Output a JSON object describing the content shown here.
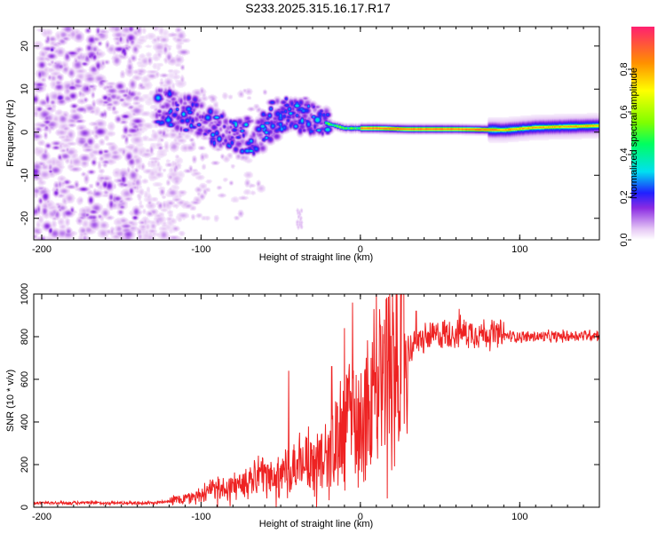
{
  "title": "S233.2025.315.16.17.R17",
  "chart_data": [
    {
      "type": "heatmap",
      "name": "spectrogram",
      "xlabel": "Height of straight line (km)",
      "ylabel": "Frequency (Hz)",
      "xlim": [
        -205,
        150
      ],
      "ylim": [
        -25,
        24.5
      ],
      "xticks": [
        -200,
        -100,
        0,
        100
      ],
      "yticks": [
        -20,
        -10,
        0,
        10,
        20
      ],
      "colorbar": {
        "label": "Normalized spectral amplitude",
        "range": [
          0,
          1
        ],
        "ticks": [
          "0.0",
          "0.2",
          "0.4",
          "0.6",
          "0.8"
        ],
        "tick_values": [
          0.0,
          0.2,
          0.4,
          0.6,
          0.8
        ]
      },
      "signal": {
        "description_points_km_hz": [
          [
            -125,
            6
          ],
          [
            -105,
            4
          ],
          [
            -85,
            0
          ],
          [
            -65,
            -1
          ],
          [
            -45,
            4
          ],
          [
            -35,
            4
          ],
          [
            -20,
            2
          ],
          [
            -10,
            1
          ],
          [
            10,
            1
          ],
          [
            30,
            0.8
          ],
          [
            60,
            0.8
          ],
          [
            90,
            0.6
          ],
          [
            110,
            1.2
          ],
          [
            150,
            1.6
          ]
        ],
        "noise_region_km": [
          -205,
          -120
        ]
      }
    },
    {
      "type": "line",
      "name": "snr",
      "xlabel": "Height of straight line (km)",
      "ylabel": "SNR (10 * v/v)",
      "xlim": [
        -205,
        150
      ],
      "ylim": [
        0,
        1000
      ],
      "xticks": [
        -200,
        -100,
        0,
        100
      ],
      "yticks": [
        0,
        200,
        400,
        600,
        800,
        1000
      ],
      "series": [
        {
          "name": "SNR",
          "color": "#ee2222",
          "trend_x": [
            -205,
            -130,
            -110,
            -90,
            -70,
            -50,
            -30,
            -20,
            -10,
            0,
            10,
            20,
            30,
            40,
            50,
            60,
            70,
            80,
            90,
            100,
            120,
            150
          ],
          "trend_y": [
            20,
            20,
            40,
            80,
            120,
            160,
            220,
            280,
            380,
            480,
            580,
            670,
            740,
            790,
            810,
            820,
            820,
            815,
            805,
            800,
            800,
            810
          ],
          "peaks_x": [
            -45,
            -18,
            -10,
            -5,
            10,
            15,
            35,
            62
          ],
          "peaks_y": [
            640,
            660,
            840,
            960,
            1000,
            880,
            920,
            930
          ]
        }
      ]
    }
  ]
}
